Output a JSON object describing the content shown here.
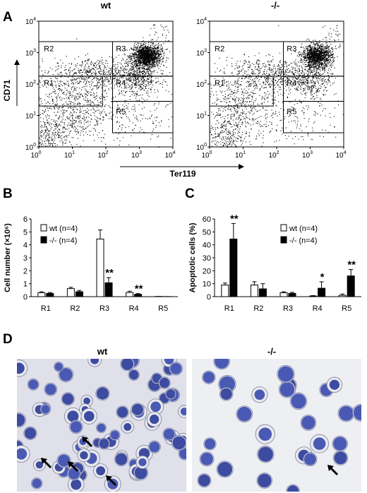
{
  "panel_a": {
    "letter": "A",
    "plots": [
      {
        "title": "wt",
        "gates": [
          "R2",
          "R3",
          "R1",
          "R4",
          "R5"
        ],
        "density": 1.0
      },
      {
        "title": "-/-",
        "gates": [
          "R2",
          "R3",
          "R1",
          "R4",
          "R5"
        ],
        "density": 0.85
      }
    ],
    "y_ticks": [
      "10^0",
      "10^1",
      "10^2",
      "10^3",
      "10^4"
    ],
    "x_ticks": [
      "10^0",
      "10^1",
      "10^2",
      "10^3",
      "10^4"
    ],
    "y_axis_label": "CD71",
    "x_axis_label": "Ter119"
  },
  "panel_b": {
    "letter": "B"
  },
  "panel_c": {
    "letter": "C"
  },
  "panel_d": {
    "letter": "D",
    "left_title": "wt",
    "right_title": "-/-"
  },
  "chart_data": [
    {
      "type": "bar",
      "ylabel": "Cell number (×10⁶)",
      "ylim": [
        0,
        6
      ],
      "y_ticks": [
        "0",
        "1",
        "2",
        "3",
        "4",
        "5",
        "6"
      ],
      "categories": [
        "R1",
        "R2",
        "R3",
        "R4",
        "R5"
      ],
      "series": [
        {
          "name": "wt (n=4)",
          "color": "#ffffff",
          "values": [
            0.3,
            0.62,
            4.45,
            0.32,
            0.02
          ],
          "errors": [
            0.08,
            0.1,
            0.7,
            0.1,
            0.0
          ]
        },
        {
          "name": "-/- (n=4)",
          "color": "#000000",
          "values": [
            0.25,
            0.38,
            1.07,
            0.18,
            0.01
          ],
          "errors": [
            0.07,
            0.1,
            0.4,
            0.06,
            0.0
          ]
        }
      ],
      "annotations": [
        {
          "category": "R3",
          "text": "**"
        },
        {
          "category": "R4",
          "text": "**"
        }
      ],
      "legend_position": "top-left"
    },
    {
      "type": "bar",
      "ylabel": "Apoptotic cells (%)",
      "ylim": [
        0,
        60
      ],
      "y_ticks": [
        "0",
        "10",
        "20",
        "30",
        "40",
        "50",
        "60"
      ],
      "categories": [
        "R1",
        "R2",
        "R3",
        "R4",
        "R5"
      ],
      "series": [
        {
          "name": "wt (n=4)",
          "color": "#ffffff",
          "values": [
            9,
            9,
            3,
            0.5,
            1
          ],
          "errors": [
            1.5,
            2.5,
            0.8,
            0.3,
            1
          ]
        },
        {
          "name": "-/- (n=4)",
          "color": "#000000",
          "values": [
            44.5,
            6,
            2.5,
            6.5,
            16
          ],
          "errors": [
            12,
            4,
            0.8,
            5,
            5
          ]
        }
      ],
      "annotations": [
        {
          "category": "R1",
          "text": "**"
        },
        {
          "category": "R4",
          "text": "*"
        },
        {
          "category": "R5",
          "text": "**"
        }
      ],
      "legend_position": "top-right"
    }
  ]
}
